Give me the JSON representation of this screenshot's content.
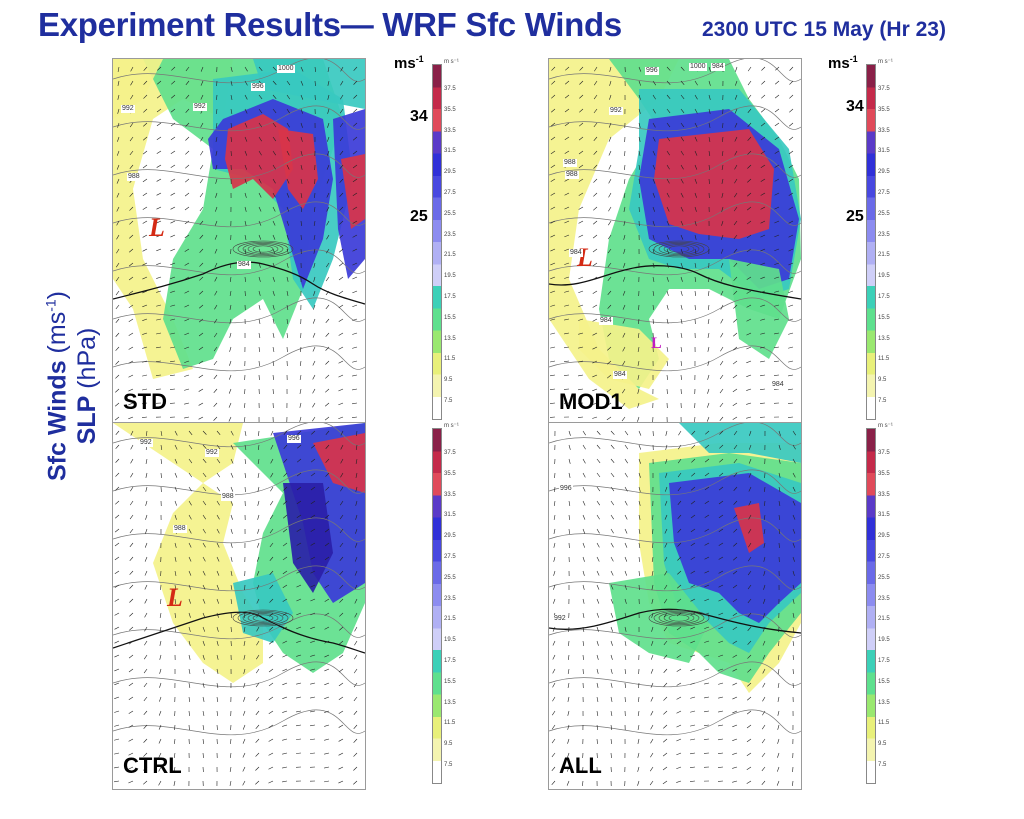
{
  "header": {
    "title": "Experiment Results—  WRF Sfc Winds",
    "subtitle": "2300 UTC 15 May (Hr 23)"
  },
  "side_label": {
    "line1_bold": "Sfc Winds",
    "line1_unit_base": "(ms",
    "line1_unit_exp": "-1",
    "line1_unit_close": ")",
    "line2_bold": "SLP",
    "line2_unit": "(hPa)"
  },
  "colorbar": {
    "unit_label": "m s⁻¹",
    "ticks": [
      "37.5",
      "35.5",
      "33.5",
      "31.5",
      "29.5",
      "27.5",
      "25.5",
      "23.5",
      "21.5",
      "19.5",
      "17.5",
      "15.5",
      "13.5",
      "11.5",
      "9.5",
      "7.5"
    ],
    "big_units_base": "ms",
    "big_units_exp": "-1",
    "thresholds": [
      "34",
      "25"
    ]
  },
  "panels": [
    {
      "label": "STD",
      "low_labels": [
        "L"
      ],
      "isobars": [
        "1000",
        "996",
        "992",
        "992",
        "988",
        "984"
      ]
    },
    {
      "label": "MOD1",
      "low_labels": [
        "L",
        "L"
      ],
      "isobars": [
        "996",
        "1000",
        "984",
        "992",
        "988",
        "988",
        "984",
        "984",
        "984",
        "984"
      ]
    },
    {
      "label": "CTRL",
      "low_labels": [
        "L"
      ],
      "isobars": [
        "992",
        "996",
        "992",
        "988",
        "988"
      ]
    },
    {
      "label": "ALL",
      "low_labels": [],
      "isobars": [
        "996",
        "992"
      ]
    }
  ]
}
